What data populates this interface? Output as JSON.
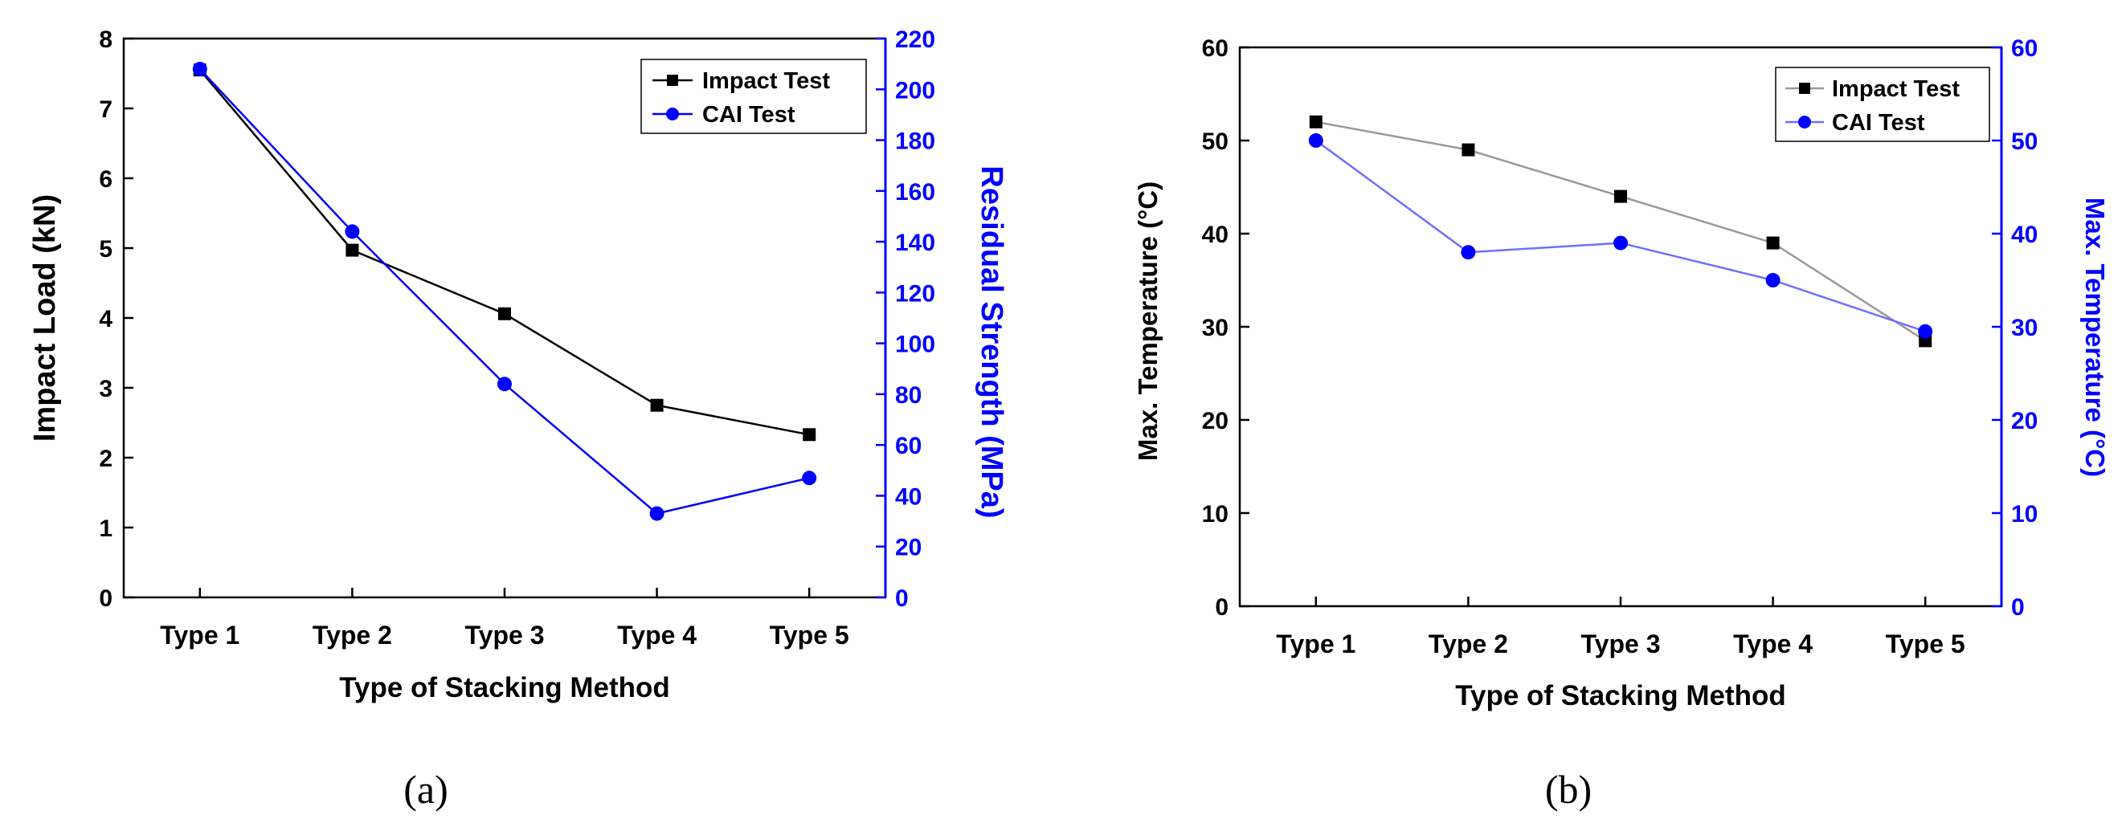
{
  "chart_data": [
    {
      "id": "a",
      "type": "line",
      "panel_label": "(a)",
      "categories": [
        "Type 1",
        "Type 2",
        "Type 3",
        "Type 4",
        "Type 5"
      ],
      "xlabel": "Type of Stacking Method",
      "ylabel_left": "Impact Load (kN)",
      "ylabel_right": "Residual Strength (MPa)",
      "ylim_left": [
        0,
        8
      ],
      "yticks_left": [
        0,
        1,
        2,
        3,
        4,
        5,
        6,
        7,
        8
      ],
      "ylim_right": [
        0,
        220
      ],
      "yticks_right": [
        0,
        20,
        40,
        60,
        80,
        100,
        120,
        140,
        160,
        180,
        200,
        220
      ],
      "legend_position": "top-right",
      "series": [
        {
          "name": "Impact Test",
          "axis": "left",
          "color": "#000000",
          "line_color": "#000000",
          "marker": "square",
          "values": [
            7.55,
            4.97,
            4.06,
            2.75,
            2.33
          ]
        },
        {
          "name": "CAI Test",
          "axis": "right",
          "color": "#0000ff",
          "line_color": "#0000ff",
          "marker": "circle",
          "values": [
            208,
            144,
            84,
            33,
            47
          ]
        }
      ]
    },
    {
      "id": "b",
      "type": "line",
      "panel_label": "(b)",
      "categories": [
        "Type 1",
        "Type 2",
        "Type 3",
        "Type 4",
        "Type 5"
      ],
      "xlabel": "Type of Stacking Method",
      "ylabel_left": "Max. Temperature (°C)",
      "ylabel_right": "Max. Temperature (°C)",
      "ylim_left": [
        0,
        60
      ],
      "yticks_left": [
        0,
        10,
        20,
        30,
        40,
        50,
        60
      ],
      "ylim_right": [
        0,
        60
      ],
      "yticks_right": [
        0,
        10,
        20,
        30,
        40,
        50,
        60
      ],
      "legend_position": "top-right",
      "series": [
        {
          "name": "Impact Test",
          "axis": "left",
          "color": "#000000",
          "line_color": "#999999",
          "marker": "square",
          "values": [
            52,
            49,
            44,
            39,
            28.5
          ]
        },
        {
          "name": "CAI Test",
          "axis": "right",
          "color": "#0000ff",
          "line_color": "#6f6fff",
          "marker": "circle",
          "values": [
            50,
            38,
            39,
            35,
            29.5
          ]
        }
      ]
    }
  ]
}
